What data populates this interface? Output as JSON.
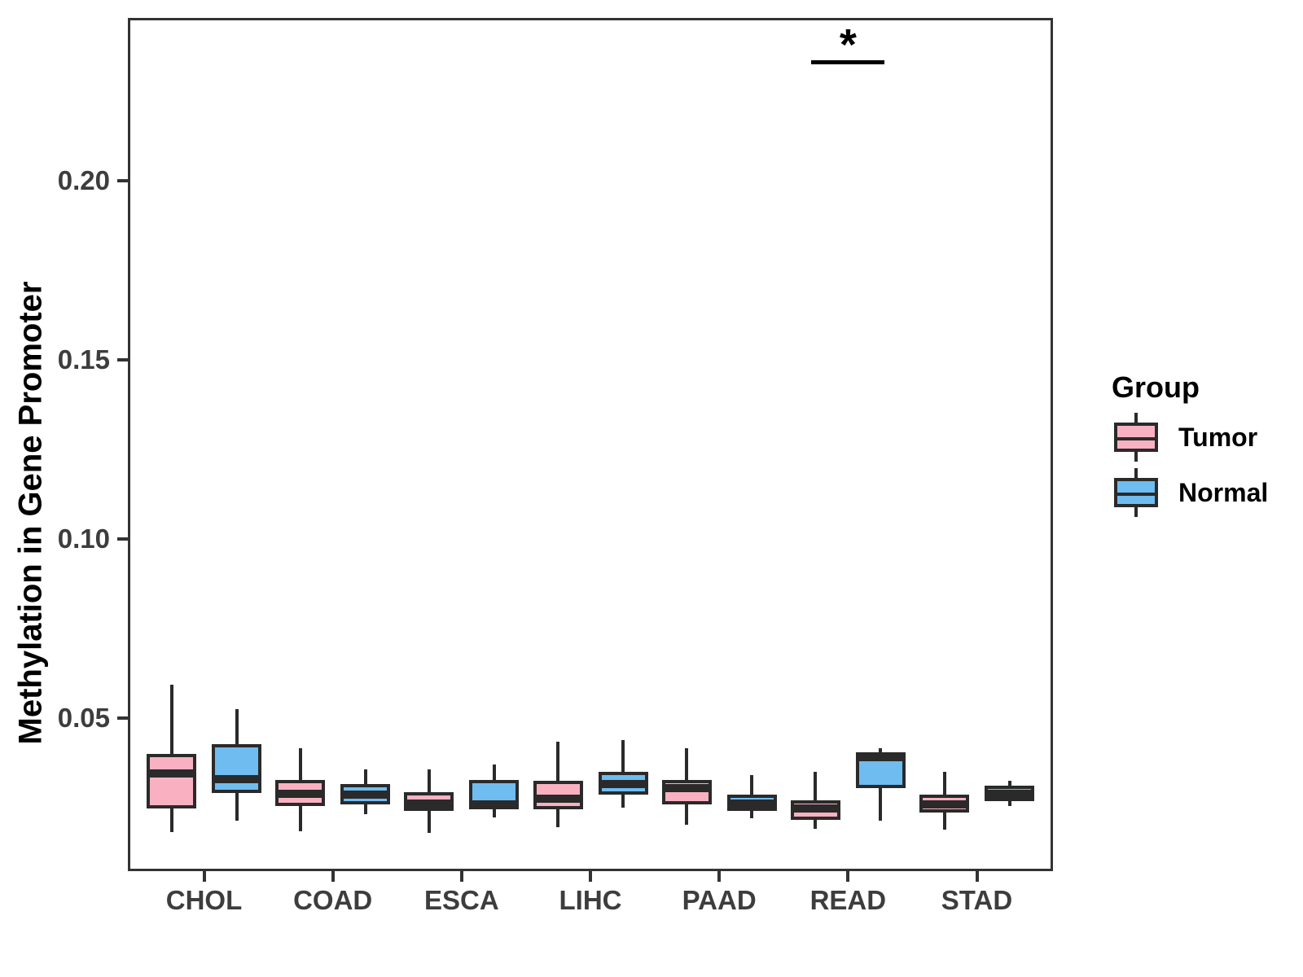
{
  "chart_data": {
    "type": "boxplot",
    "title": "",
    "xlabel": "",
    "ylabel": "Methylation in Gene Promoter",
    "categories": [
      "CHOL",
      "COAD",
      "ESCA",
      "LIHC",
      "PAAD",
      "READ",
      "STAD"
    ],
    "ylim": [
      0.0073,
      0.2455
    ],
    "y_ticks": [
      {
        "value": 0.05,
        "label": "0.05"
      },
      {
        "value": 0.1,
        "label": "0.10"
      },
      {
        "value": 0.15,
        "label": "0.15"
      },
      {
        "value": 0.2,
        "label": "0.20"
      }
    ],
    "grid": "off",
    "legend": {
      "title": "Group",
      "position": "right"
    },
    "series": [
      {
        "name": "Tumor",
        "fill": "#F9B1C1",
        "boxes": [
          {
            "category": "CHOL",
            "whisker_low": 0.0182,
            "q1": 0.0248,
            "median": 0.0345,
            "q3": 0.04,
            "whisker_high": 0.0593
          },
          {
            "category": "COAD",
            "whisker_low": 0.0184,
            "q1": 0.0255,
            "median": 0.0289,
            "q3": 0.0327,
            "whisker_high": 0.0416
          },
          {
            "category": "ESCA",
            "whisker_low": 0.018,
            "q1": 0.0241,
            "median": 0.0261,
            "q3": 0.0293,
            "whisker_high": 0.0357
          },
          {
            "category": "LIHC",
            "whisker_low": 0.0195,
            "q1": 0.0245,
            "median": 0.0275,
            "q3": 0.0325,
            "whisker_high": 0.0434
          },
          {
            "category": "PAAD",
            "whisker_low": 0.0202,
            "q1": 0.0259,
            "median": 0.0305,
            "q3": 0.0327,
            "whisker_high": 0.0416
          },
          {
            "category": "READ",
            "whisker_low": 0.0191,
            "q1": 0.0216,
            "median": 0.0248,
            "q3": 0.027,
            "whisker_high": 0.035
          },
          {
            "category": "STAD",
            "whisker_low": 0.019,
            "q1": 0.0236,
            "median": 0.0259,
            "q3": 0.0286,
            "whisker_high": 0.035
          }
        ]
      },
      {
        "name": "Normal",
        "fill": "#6FBCF0",
        "boxes": [
          {
            "category": "CHOL",
            "whisker_low": 0.0214,
            "q1": 0.0291,
            "median": 0.033,
            "q3": 0.0427,
            "whisker_high": 0.0525
          },
          {
            "category": "COAD",
            "whisker_low": 0.0232,
            "q1": 0.0259,
            "median": 0.0286,
            "q3": 0.0316,
            "whisker_high": 0.0357
          },
          {
            "category": "ESCA",
            "whisker_low": 0.0223,
            "q1": 0.0245,
            "median": 0.0259,
            "q3": 0.0327,
            "whisker_high": 0.037
          },
          {
            "category": "LIHC",
            "whisker_low": 0.025,
            "q1": 0.0286,
            "median": 0.0316,
            "q3": 0.035,
            "whisker_high": 0.0439
          },
          {
            "category": "PAAD",
            "whisker_low": 0.022,
            "q1": 0.0241,
            "median": 0.0261,
            "q3": 0.0286,
            "whisker_high": 0.0341
          },
          {
            "category": "READ",
            "whisker_low": 0.0214,
            "q1": 0.0305,
            "median": 0.0391,
            "q3": 0.0405,
            "whisker_high": 0.0416
          },
          {
            "category": "STAD",
            "whisker_low": 0.0255,
            "q1": 0.0268,
            "median": 0.029,
            "q3": 0.0311,
            "whisker_high": 0.0325
          }
        ]
      }
    ],
    "significance": {
      "category": "READ",
      "label": "*",
      "bar_value": 0.2336
    }
  },
  "colors": {
    "tumor_fill": "#F9B1C1",
    "normal_fill": "#6FBCF0",
    "box_stroke": "#2a2a2a",
    "axis_stroke": "#333333",
    "tick_text": "#3d3d3d"
  }
}
